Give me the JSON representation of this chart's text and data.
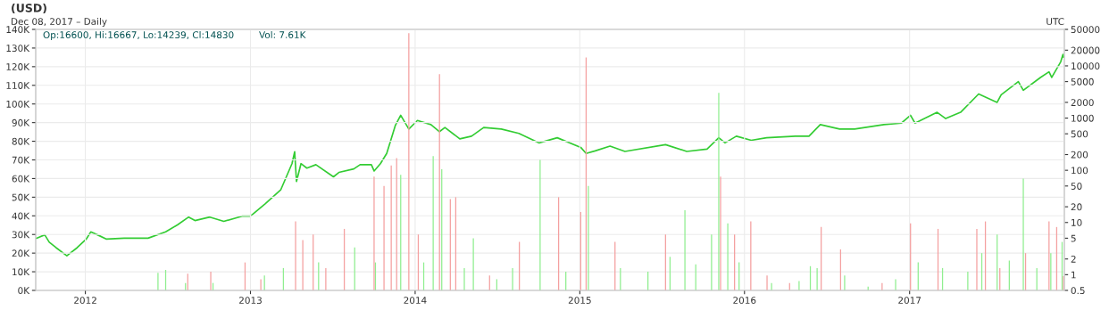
{
  "chart_data": {
    "type": "bar",
    "title": "(USD)",
    "subtitle": "Dec 08, 2017 – Daily",
    "annotations": [
      "Op:16600, Hi:16667, Lo:14239, Cl:14830",
      "Vol: 7.61K",
      "UTC"
    ],
    "xlim": [
      "2011-09-13",
      "2017-12-10"
    ],
    "xticks": [
      {
        "value": "2012-01-01",
        "label": "2012"
      },
      {
        "value": "2013-01-01",
        "label": "2013"
      },
      {
        "value": "2014-01-01",
        "label": "2014"
      },
      {
        "value": "2015-01-01",
        "label": "2015"
      },
      {
        "value": "2016-01-01",
        "label": "2016"
      },
      {
        "value": "2017-01-01",
        "label": "2017"
      }
    ],
    "ylim": [
      0,
      140000
    ],
    "yticks": [
      {
        "value": 0,
        "label": "0K"
      },
      {
        "value": 10000,
        "label": "10K"
      },
      {
        "value": 20000,
        "label": "20K"
      },
      {
        "value": 30000,
        "label": "30K"
      },
      {
        "value": 40000,
        "label": "40K"
      },
      {
        "value": 50000,
        "label": "50K"
      },
      {
        "value": 60000,
        "label": "60K"
      },
      {
        "value": 70000,
        "label": "70K"
      },
      {
        "value": 80000,
        "label": "80K"
      },
      {
        "value": 90000,
        "label": "90K"
      },
      {
        "value": 100000,
        "label": "100K"
      },
      {
        "value": 110000,
        "label": "110K"
      },
      {
        "value": 120000,
        "label": "120K"
      },
      {
        "value": 130000,
        "label": "130K"
      },
      {
        "value": 140000,
        "label": "140K"
      }
    ],
    "y2lim": [
      0.5,
      50000
    ],
    "y2ticks": [
      0.5,
      1,
      2,
      5,
      10,
      20,
      50,
      100,
      200,
      500,
      1000,
      2000,
      5000,
      10000,
      20000,
      50000
    ],
    "log": "y2",
    "grid": true,
    "legend": false,
    "series": [
      {
        "color": "#90ee90",
        "x": [
          "2012-06-10",
          "2012-06-27",
          "2012-08-10",
          "2012-10-10",
          "2013-02-01",
          "2013-03-15",
          "2013-06-01",
          "2013-08-20",
          "2013-10-05",
          "2013-11-30",
          "2014-01-20",
          "2014-02-10",
          "2014-03-01",
          "2014-04-20",
          "2014-05-10",
          "2014-07-01",
          "2014-08-05",
          "2014-10-05",
          "2014-12-01",
          "2015-01-20",
          "2015-04-01",
          "2015-06-01",
          "2015-07-20",
          "2015-08-22",
          "2015-09-15",
          "2015-10-20",
          "2015-11-05",
          "2015-11-25",
          "2015-12-20",
          "2016-03-01",
          "2016-05-01",
          "2016-05-26",
          "2016-06-10",
          "2016-08-10",
          "2016-10-01",
          "2016-12-01",
          "2017-01-20",
          "2017-03-15",
          "2017-05-10",
          "2017-06-10",
          "2017-07-14",
          "2017-08-10",
          "2017-09-10",
          "2017-10-10",
          "2017-11-10",
          "2017-12-05"
        ],
        "values": [
          9400,
          11000,
          4000,
          4000,
          8000,
          12000,
          15000,
          23000,
          15000,
          62000,
          15000,
          72000,
          65000,
          12000,
          28000,
          6000,
          12000,
          70000,
          10000,
          56000,
          12000,
          10000,
          18000,
          43000,
          14000,
          30000,
          106000,
          36000,
          15000,
          4000,
          5000,
          13000,
          12000,
          8000,
          2000,
          6000,
          15000,
          12000,
          10000,
          20000,
          30000,
          16000,
          60000,
          12000,
          20000,
          26000
        ]
      },
      {
        "color": "#f4a0a0",
        "x": [
          "2012-08-15",
          "2012-10-05",
          "2012-12-20",
          "2013-01-24",
          "2013-04-11",
          "2013-04-27",
          "2013-05-20",
          "2013-06-17",
          "2013-07-28",
          "2013-10-02",
          "2013-10-24",
          "2013-11-09",
          "2013-11-21",
          "2013-12-18",
          "2014-01-08",
          "2014-02-24",
          "2014-03-20",
          "2014-04-01",
          "2014-06-15",
          "2014-08-20",
          "2014-11-15",
          "2015-01-03",
          "2015-01-15",
          "2015-03-20",
          "2015-07-10",
          "2015-11-09",
          "2015-12-10",
          "2016-01-15",
          "2016-02-20",
          "2016-04-10",
          "2016-06-19",
          "2016-08-01",
          "2016-11-01",
          "2017-01-03",
          "2017-03-05",
          "2017-05-30",
          "2017-06-18",
          "2017-07-20",
          "2017-09-15",
          "2017-11-06",
          "2017-11-23",
          "2017-12-08"
        ],
        "values": [
          9000,
          10000,
          15000,
          6000,
          37000,
          27000,
          30000,
          12000,
          33000,
          61000,
          56000,
          67000,
          71000,
          138000,
          30000,
          116000,
          49000,
          50000,
          8000,
          26000,
          50000,
          42000,
          125000,
          26000,
          30000,
          61000,
          30000,
          37000,
          8000,
          4000,
          34000,
          22000,
          4000,
          36000,
          33000,
          33000,
          37000,
          12000,
          20000,
          37000,
          34000,
          7610
        ]
      },
      {
        "type": "line",
        "axis": "y2",
        "color": "#33cc33",
        "x": [
          "2011-09-15",
          "2011-10-03",
          "2011-10-13",
          "2011-10-28",
          "2011-11-21",
          "2011-12-14",
          "2012-01-03",
          "2012-01-13",
          "2012-01-28",
          "2012-02-17",
          "2012-03-27",
          "2012-05-19",
          "2012-06-27",
          "2012-07-23",
          "2012-08-17",
          "2012-08-31",
          "2012-10-03",
          "2012-11-03",
          "2012-12-13",
          "2013-01-01",
          "2013-02-03",
          "2013-03-09",
          "2013-04-03",
          "2013-04-09",
          "2013-04-13",
          "2013-04-23",
          "2013-05-06",
          "2013-05-26",
          "2013-07-04",
          "2013-07-16",
          "2013-08-18",
          "2013-09-01",
          "2013-09-26",
          "2013-10-02",
          "2013-10-16",
          "2013-10-30",
          "2013-11-18",
          "2013-11-30",
          "2013-12-18",
          "2014-01-06",
          "2014-02-05",
          "2014-02-24",
          "2014-03-08",
          "2014-04-10",
          "2014-05-06",
          "2014-06-02",
          "2014-07-11",
          "2014-08-19",
          "2014-10-03",
          "2014-11-12",
          "2015-01-03",
          "2015-01-15",
          "2015-02-04",
          "2015-03-09",
          "2015-04-11",
          "2015-07-10",
          "2015-08-26",
          "2015-10-10",
          "2015-11-05",
          "2015-11-19",
          "2015-12-14",
          "2016-01-16",
          "2016-02-19",
          "2016-04-23",
          "2016-05-23",
          "2016-06-17",
          "2016-07-30",
          "2016-09-01",
          "2016-11-05",
          "2016-12-14",
          "2017-01-03",
          "2017-01-13",
          "2017-03-03",
          "2017-03-22",
          "2017-04-24",
          "2017-06-03",
          "2017-07-14",
          "2017-07-23",
          "2017-08-30",
          "2017-09-10",
          "2017-10-18",
          "2017-11-06",
          "2017-11-12",
          "2017-12-02",
          "2017-12-07",
          "2017-12-08"
        ],
        "values": [
          5.0,
          5.8,
          4.2,
          3.3,
          2.3,
          3.3,
          4.8,
          6.6,
          5.8,
          4.8,
          5.0,
          5.0,
          6.6,
          9.0,
          12.7,
          10.9,
          12.7,
          10.5,
          13.2,
          13.2,
          23,
          42,
          134,
          227,
          61,
          134,
          110,
          128,
          75,
          91,
          106,
          128,
          128,
          97,
          134,
          210,
          720,
          1130,
          615,
          900,
          750,
          550,
          660,
          400,
          450,
          660,
          615,
          510,
          335,
          420,
          275,
          210,
          235,
          290,
          230,
          310,
          230,
          255,
          420,
          335,
          450,
          375,
          420,
          450,
          450,
          750,
          615,
          615,
          750,
          800,
          1130,
          800,
          1290,
          980,
          1290,
          2900,
          2000,
          2800,
          5000,
          3400,
          6000,
          7700,
          6000,
          12000,
          16600,
          14830
        ]
      }
    ]
  }
}
